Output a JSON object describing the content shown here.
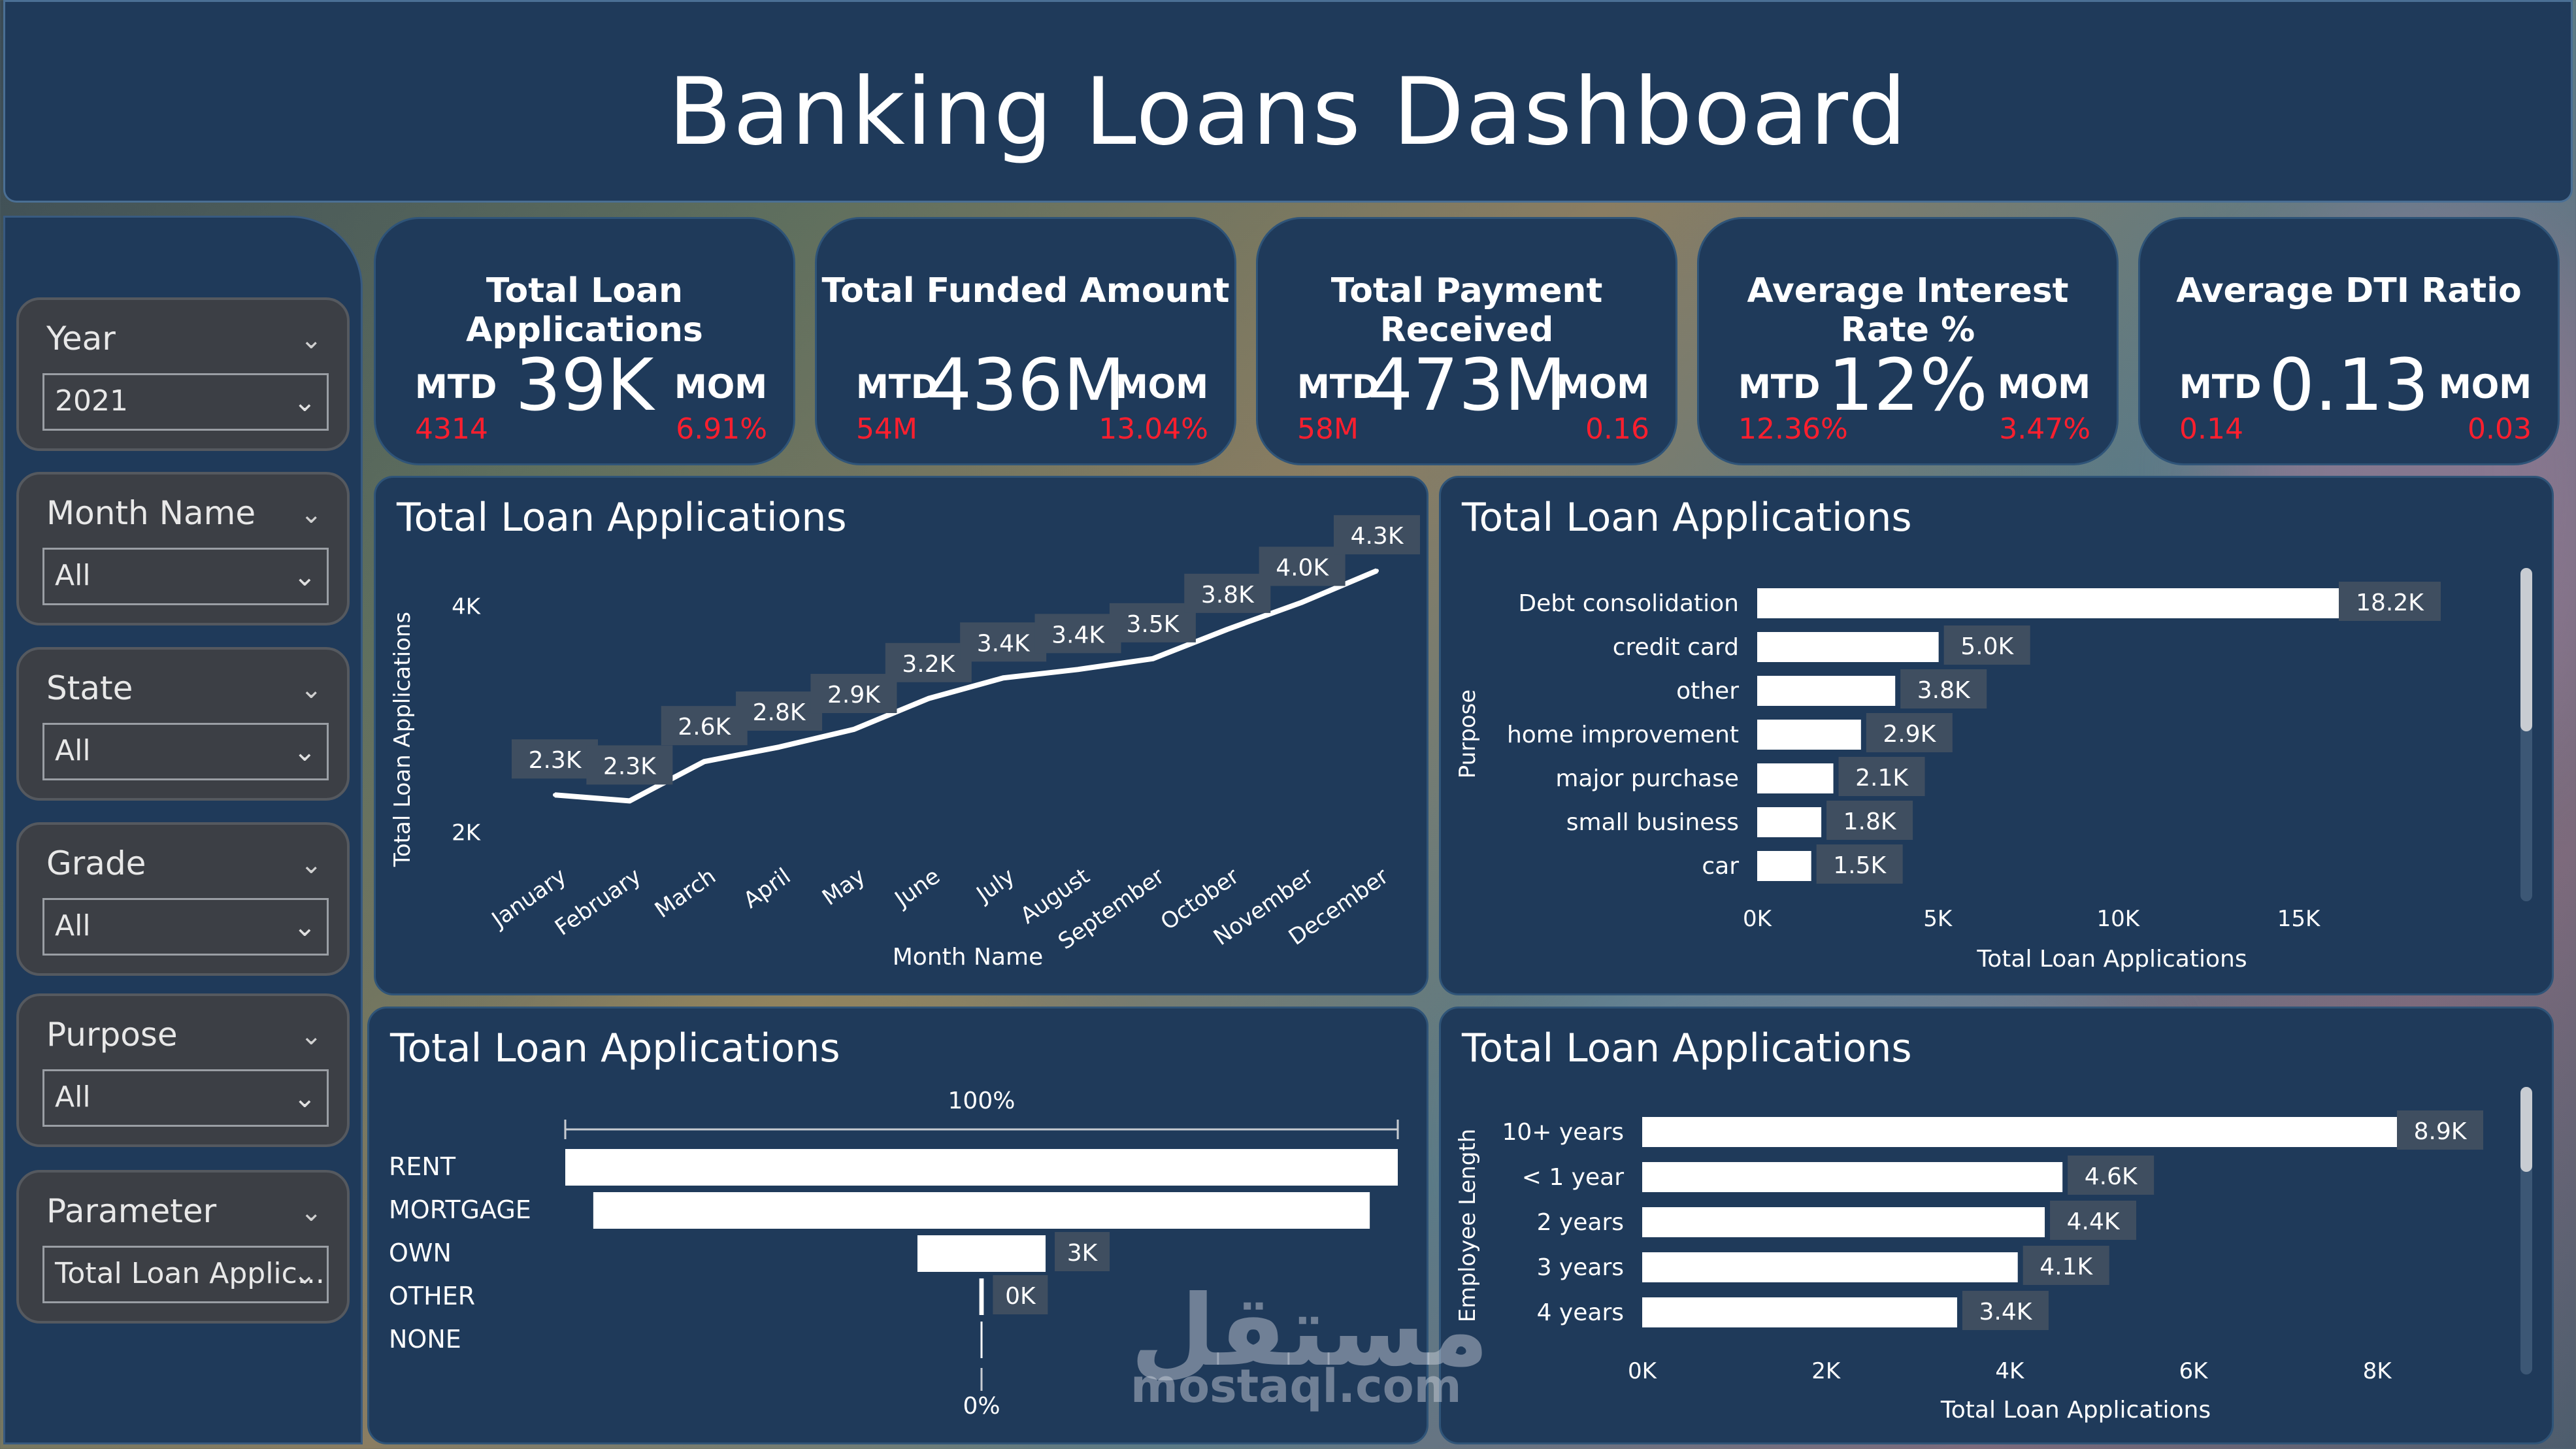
{
  "header": {
    "title": "Banking Loans Dashboard"
  },
  "slicers": [
    {
      "label": "Year",
      "value": "2021"
    },
    {
      "label": "Month Name",
      "value": "All"
    },
    {
      "label": "State",
      "value": "All"
    },
    {
      "label": "Grade",
      "value": "All"
    },
    {
      "label": "Purpose",
      "value": "All"
    },
    {
      "label": "Parameter",
      "value": "Total Loan Applic..."
    }
  ],
  "kpis": [
    {
      "title": "Total Loan Applications",
      "value": "39K",
      "mtd_label": "MTD",
      "mom_label": "MOM",
      "mtd_value": "4314",
      "mom_value": "6.91%"
    },
    {
      "title": "Total Funded Amount",
      "value": "436M",
      "mtd_label": "MTD",
      "mom_label": "MOM",
      "mtd_value": "54M",
      "mom_value": "13.04%"
    },
    {
      "title": "Total Payment Received",
      "value": "473M",
      "mtd_label": "MTD",
      "mom_label": "MOM",
      "mtd_value": "58M",
      "mom_value": "0.16"
    },
    {
      "title": "Average Interest Rate %",
      "value": "12%",
      "mtd_label": "MTD",
      "mom_label": "MOM",
      "mtd_value": "12.36%",
      "mom_value": "3.47%"
    },
    {
      "title": "Average DTI Ratio",
      "value": "0.13",
      "mtd_label": "MTD",
      "mom_label": "MOM",
      "mtd_value": "0.14",
      "mom_value": "0.03"
    }
  ],
  "colors": {
    "panel": "#1f3a5a",
    "label_bg": "#3f4e60",
    "bar": "#ffffff",
    "accent_red": "#ff1f2e",
    "text": "#ffffff"
  },
  "watermark": {
    "latin": "mostaql.com",
    "arabic": "مستقل"
  },
  "chart_data": [
    {
      "type": "line",
      "title": "Total Loan Applications",
      "xlabel": "Month Name",
      "ylabel": "Total Loan Applications",
      "categories": [
        "January",
        "February",
        "March",
        "April",
        "May",
        "June",
        "July",
        "August",
        "September",
        "October",
        "November",
        "December"
      ],
      "values": [
        2332,
        2279,
        2627,
        2755,
        2911,
        3184,
        3366,
        3441,
        3536,
        3796,
        4035,
        4314
      ],
      "data_labels": [
        "2.3K",
        "2.3K",
        "2.6K",
        "2.8K",
        "2.9K",
        "3.2K",
        "3.4K",
        "3.4K",
        "3.5K",
        "3.8K",
        "4.0K",
        "4.3K"
      ],
      "ylim": [
        1900,
        4500
      ],
      "yticks": [
        {
          "v": 2000,
          "label": "2K"
        },
        {
          "v": 4000,
          "label": "4K"
        }
      ]
    },
    {
      "type": "bar",
      "orientation": "horizontal",
      "title": "Total Loan Applications",
      "xlabel": "Total Loan Applications",
      "ylabel": "Purpose",
      "categories": [
        "Debt consolidation",
        "credit card",
        "other",
        "home improvement",
        "major purchase",
        "small business",
        "car"
      ],
      "values": [
        18214,
        5027,
        3824,
        2876,
        2110,
        1776,
        1497
      ],
      "data_labels": [
        "18.2K",
        "5.0K",
        "3.8K",
        "2.9K",
        "2.1K",
        "1.8K",
        "1.5K"
      ],
      "xlim": [
        0,
        18214
      ],
      "xticks": [
        {
          "v": 0,
          "label": "0K"
        },
        {
          "v": 5000,
          "label": "5K"
        },
        {
          "v": 10000,
          "label": "10K"
        },
        {
          "v": 15000,
          "label": "15K"
        }
      ]
    },
    {
      "type": "bar",
      "orientation": "funnel",
      "title": "Total Loan Applications",
      "categories": [
        "RENT",
        "MORTGAGE",
        "OWN",
        "OTHER",
        "NONE"
      ],
      "values": [
        18439,
        17198,
        2838,
        98,
        3
      ],
      "data_labels": [
        "",
        "",
        "3K",
        "0K",
        ""
      ],
      "top_label": "100%",
      "bottom_label": "0%"
    },
    {
      "type": "bar",
      "orientation": "horizontal",
      "title": "Total Loan Applications",
      "xlabel": "Total Loan Applications",
      "ylabel": "Employee Length",
      "categories": [
        "10+ years",
        "< 1 year",
        "2 years",
        "3 years",
        "4 years"
      ],
      "values": [
        8870,
        4575,
        4382,
        4088,
        3428
      ],
      "data_labels": [
        "8.9K",
        "4.6K",
        "4.4K",
        "4.1K",
        "3.4K"
      ],
      "xlim": [
        0,
        8870
      ],
      "xticks": [
        {
          "v": 0,
          "label": "0K"
        },
        {
          "v": 2000,
          "label": "2K"
        },
        {
          "v": 4000,
          "label": "4K"
        },
        {
          "v": 6000,
          "label": "6K"
        },
        {
          "v": 8000,
          "label": "8K"
        }
      ]
    }
  ]
}
